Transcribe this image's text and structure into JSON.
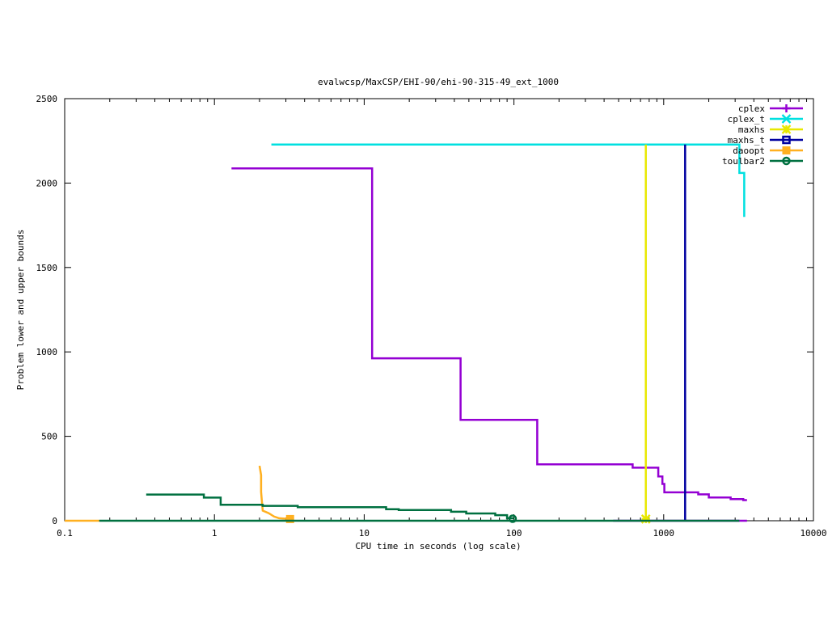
{
  "chart_data": {
    "type": "line",
    "title": "evalwcsp/MaxCSP/EHI-90/ehi-90-315-49_ext_1000",
    "xlabel": "CPU time in seconds (log scale)",
    "ylabel": "Problem lower and upper bounds",
    "xscale": "log",
    "xlim": [
      0.1,
      10000
    ],
    "ylim": [
      0,
      2500
    ],
    "x_ticks": [
      0.1,
      1,
      10,
      100,
      1000,
      10000
    ],
    "x_tick_labels": [
      "0.1",
      "1",
      "10",
      "100",
      "1000",
      "10000"
    ],
    "y_ticks": [
      0,
      500,
      1000,
      1500,
      2000,
      2500
    ],
    "y_tick_labels": [
      "0",
      "500",
      "1000",
      "1500",
      "2000",
      "2500"
    ],
    "grid": false,
    "legend_position": "top-right",
    "series": [
      {
        "name": "cplex",
        "color": "#9400d3",
        "marker": "plus",
        "lines": [
          [
            [
              1.3,
              2087
            ],
            [
              11.3,
              2087
            ],
            [
              11.3,
              962
            ],
            [
              44,
              962
            ],
            [
              44,
              597
            ],
            [
              143,
              597
            ],
            [
              143,
              334
            ],
            [
              620,
              334
            ],
            [
              620,
              314
            ],
            [
              920,
              314
            ],
            [
              920,
              262
            ],
            [
              980,
              262
            ],
            [
              980,
              218
            ],
            [
              1010,
              218
            ],
            [
              1010,
              168
            ],
            [
              1700,
              168
            ],
            [
              1700,
              156
            ],
            [
              2000,
              156
            ],
            [
              2000,
              138
            ],
            [
              2800,
              138
            ],
            [
              2800,
              128
            ],
            [
              3400,
              128
            ],
            [
              3400,
              122
            ],
            [
              3600,
              122
            ]
          ],
          [
            [
              460,
              0
            ],
            [
              3600,
              0
            ]
          ]
        ],
        "markers": []
      },
      {
        "name": "cplex_t",
        "color": "#00e0e0",
        "marker": "x",
        "lines": [
          [
            [
              2.4,
              2228
            ],
            [
              3200,
              2228
            ],
            [
              3200,
              2060
            ],
            [
              3450,
              2060
            ],
            [
              3450,
              1800
            ]
          ]
        ],
        "markers": []
      },
      {
        "name": "maxhs",
        "color": "#e8e800",
        "marker": "star",
        "lines": [
          [
            [
              760,
              2228
            ],
            [
              760,
              0
            ]
          ]
        ],
        "markers": [
          [
            760,
            10
          ]
        ]
      },
      {
        "name": "maxhs_t",
        "color": "#0000a0",
        "marker": "square",
        "lines": [
          [
            [
              1390,
              2228
            ],
            [
              1390,
              0
            ]
          ]
        ],
        "markers": []
      },
      {
        "name": "daoopt",
        "color": "#ffb020",
        "marker": "filled-square",
        "lines": [
          [
            [
              0.1,
              0
            ],
            [
              0.17,
              0
            ]
          ],
          [
            [
              2.0,
              325
            ],
            [
              2.05,
              270
            ],
            [
              2.05,
              170
            ],
            [
              2.1,
              60
            ],
            [
              2.3,
              45
            ],
            [
              2.5,
              25
            ],
            [
              2.7,
              15
            ],
            [
              3.2,
              10
            ]
          ]
        ],
        "markers": [
          [
            3.2,
            10
          ]
        ]
      },
      {
        "name": "toulbar2",
        "color": "#007040",
        "marker": "circle",
        "lines": [
          [
            [
              0.35,
              155
            ],
            [
              0.85,
              155
            ],
            [
              0.85,
              137
            ],
            [
              1.1,
              137
            ],
            [
              1.1,
              95
            ],
            [
              2.1,
              95
            ],
            [
              2.1,
              88
            ],
            [
              3.6,
              88
            ],
            [
              3.6,
              80
            ],
            [
              14,
              80
            ],
            [
              14,
              68
            ],
            [
              17,
              68
            ],
            [
              17,
              63
            ],
            [
              38,
              63
            ],
            [
              38,
              53
            ],
            [
              48,
              53
            ],
            [
              48,
              43
            ],
            [
              75,
              43
            ],
            [
              75,
              33
            ],
            [
              90,
              33
            ],
            [
              90,
              15
            ],
            [
              100,
              15
            ]
          ],
          [
            [
              0.17,
              0
            ],
            [
              3200,
              0
            ]
          ]
        ],
        "markers": [
          [
            98,
            12
          ]
        ]
      }
    ]
  }
}
